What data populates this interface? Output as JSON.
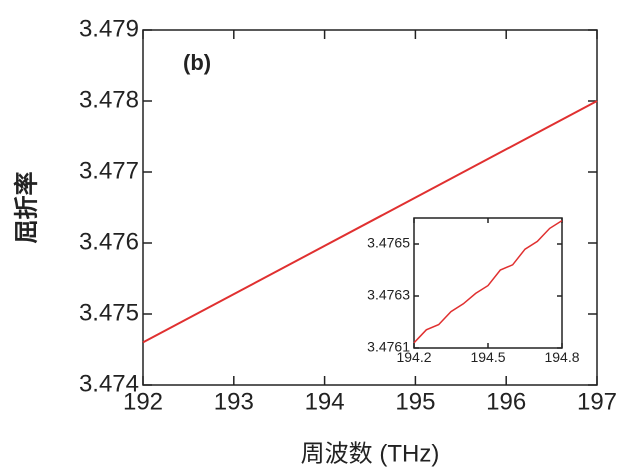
{
  "chart_data": [
    {
      "type": "line",
      "title": "(b)",
      "xlabel": "周波数 (THz)",
      "ylabel": "屈折率",
      "x": [
        192,
        197
      ],
      "series": [
        {
          "name": null,
          "color": "#e03030",
          "values": [
            3.4746,
            3.478
          ]
        }
      ],
      "xlim": [
        192,
        197
      ],
      "xticks": [
        192,
        193,
        194,
        195,
        196,
        197
      ],
      "ylim": [
        3.474,
        3.479
      ],
      "yticks": [
        3.474,
        3.475,
        3.476,
        3.477,
        3.478,
        3.479
      ]
    },
    {
      "type": "line",
      "x": [
        194.2,
        194.25,
        194.3,
        194.35,
        194.4,
        194.45,
        194.5,
        194.55,
        194.6,
        194.65,
        194.7,
        194.75,
        194.8
      ],
      "series": [
        {
          "name": null,
          "color": "#e03030",
          "values": [
            3.47612,
            3.47617,
            3.47619,
            3.47624,
            3.47627,
            3.47631,
            3.47634,
            3.4764,
            3.47642,
            3.47648,
            3.47651,
            3.47656,
            3.47659
          ]
        }
      ],
      "xlim": [
        194.2,
        194.8
      ],
      "xticks": [
        194.2,
        194.5,
        194.8
      ],
      "ylim": [
        3.4761,
        3.4766
      ],
      "yticks": [
        3.4761,
        3.4763,
        3.4765
      ]
    }
  ]
}
